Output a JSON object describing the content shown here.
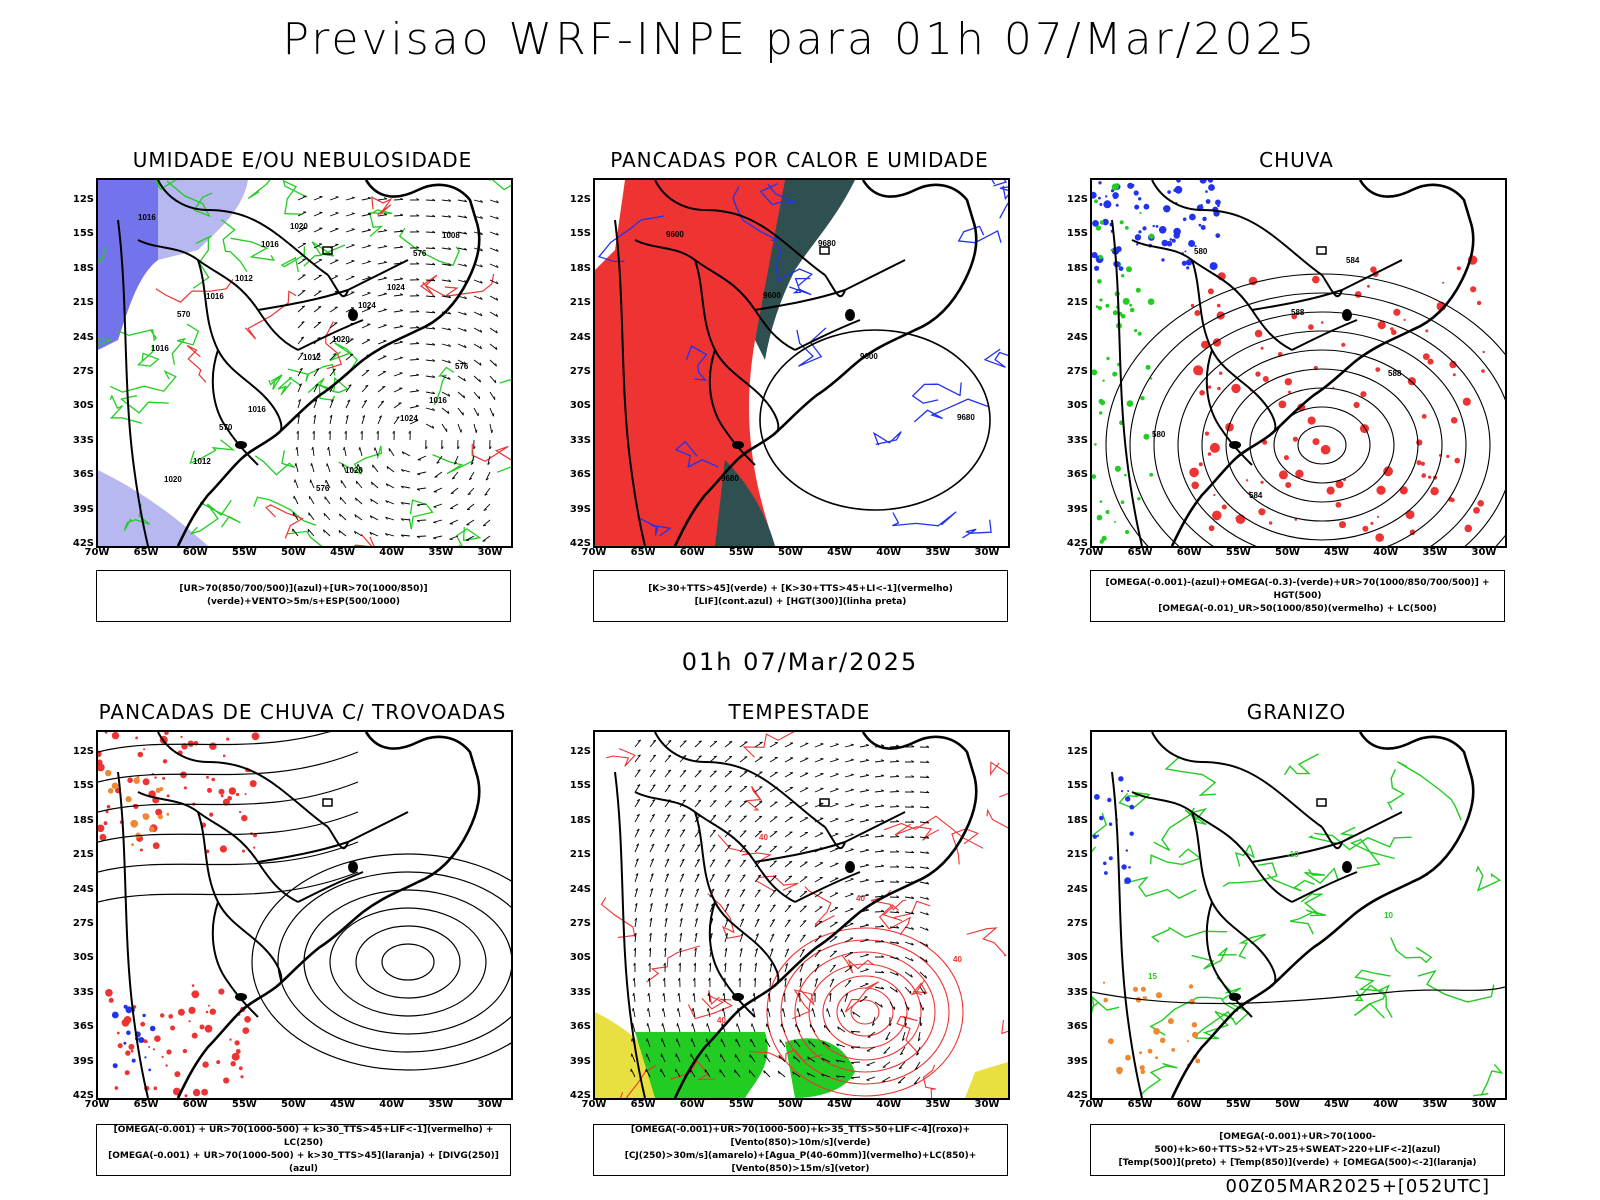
{
  "main_title": "Previsao WRF-INPE  para 01h 07/Mar/2025",
  "mid_title": "01h 07/Mar/2025",
  "footer": "00Z05MAR2025+[052UTC]",
  "lat_ticks": [
    "12S",
    "15S",
    "18S",
    "21S",
    "24S",
    "27S",
    "30S",
    "33S",
    "36S",
    "39S",
    "42S"
  ],
  "lon_ticks": [
    "70W",
    "65W",
    "60W",
    "55W",
    "50W",
    "45W",
    "40W",
    "35W",
    "30W"
  ],
  "colors": {
    "humidity_blue": "#5a5ae8",
    "humidity_lightblue": "#b8b8f0",
    "green": "#22cc22",
    "red": "#ee3333",
    "darkteal": "#2f5050",
    "yellow": "#e8e040",
    "orange": "#ee8833",
    "blue": "#2233ee"
  },
  "panels": [
    {
      "title": "UMIDADE E/OU NEBULOSIDADE",
      "legend": [
        "[UR>70(850/700/500)](azul)+[UR>70(1000/850)](verde)+VENTO>5m/s+ESP(500/1000)"
      ],
      "labels": [
        "1016",
        "1012",
        "1020",
        "1016",
        "1012",
        "1020",
        "1024",
        "1016",
        "1016",
        "1020",
        "1008",
        "1016",
        "1012",
        "1024",
        "1020",
        "1016",
        "1024",
        "576",
        "570",
        "576",
        "576",
        "570"
      ]
    },
    {
      "title": "PANCADAS POR CALOR E UMIDADE",
      "legend": [
        "[K>30+TTS>45](verde) + [K>30+TTS>45+LI<-1](vermelho)",
        "[LIF](cont.azul) + [HGT(300)](linha preta)"
      ],
      "labels": [
        "9600",
        "9600",
        "9600",
        "9680",
        "9680",
        "9680"
      ]
    },
    {
      "title": "CHUVA",
      "legend": [
        "[OMEGA(-0.001)-(azul)+OMEGA(-0.3)-(verde)+UR>70(1000/850/700/500)] + HGT(500)",
        "[OMEGA(-0.01)_UR>50(1000/850)(vermelho) + LC(500)"
      ],
      "labels": [
        "580",
        "588",
        "588",
        "580",
        "584",
        "584"
      ]
    },
    {
      "title": "PANCADAS DE CHUVA C/ TROVOADAS",
      "legend": [
        "[OMEGA(-0.001) + UR>70(1000-500) + k>30_TTS>45+LIF<-1](vermelho) + LC(250)",
        "[OMEGA(-0.001) + UR>70(1000-500) + k>30_TTS>45](laranja) + [DIVG(250)](azul)"
      ],
      "labels": []
    },
    {
      "title": "TEMPESTADE",
      "legend": [
        "[OMEGA(-0.001)+UR>70(1000-500)+k>35_TTS>50+LIF<-4](roxo)+[Vento(850)>10m/s](verde)",
        "[CJ(250)>30m/s](amarelo)+[Agua_P(40-60mm)](vermelho)+LC(850)+[Vento(850)>15m/s](vetor)"
      ],
      "labels": [
        "40",
        "40",
        "40",
        "40"
      ]
    },
    {
      "title": "GRANIZO",
      "legend": [
        "[OMEGA(-0.001)+UR>70(1000-500)+k>60+TTS>52+VT>25+SWEAT>220+LIF<-2](azul)",
        "[Temp(500)](preto) + [Temp(850)](verde) + [OMEGA(500)<-2](laranja)"
      ],
      "labels": [
        "-10",
        "10",
        "15"
      ]
    }
  ]
}
